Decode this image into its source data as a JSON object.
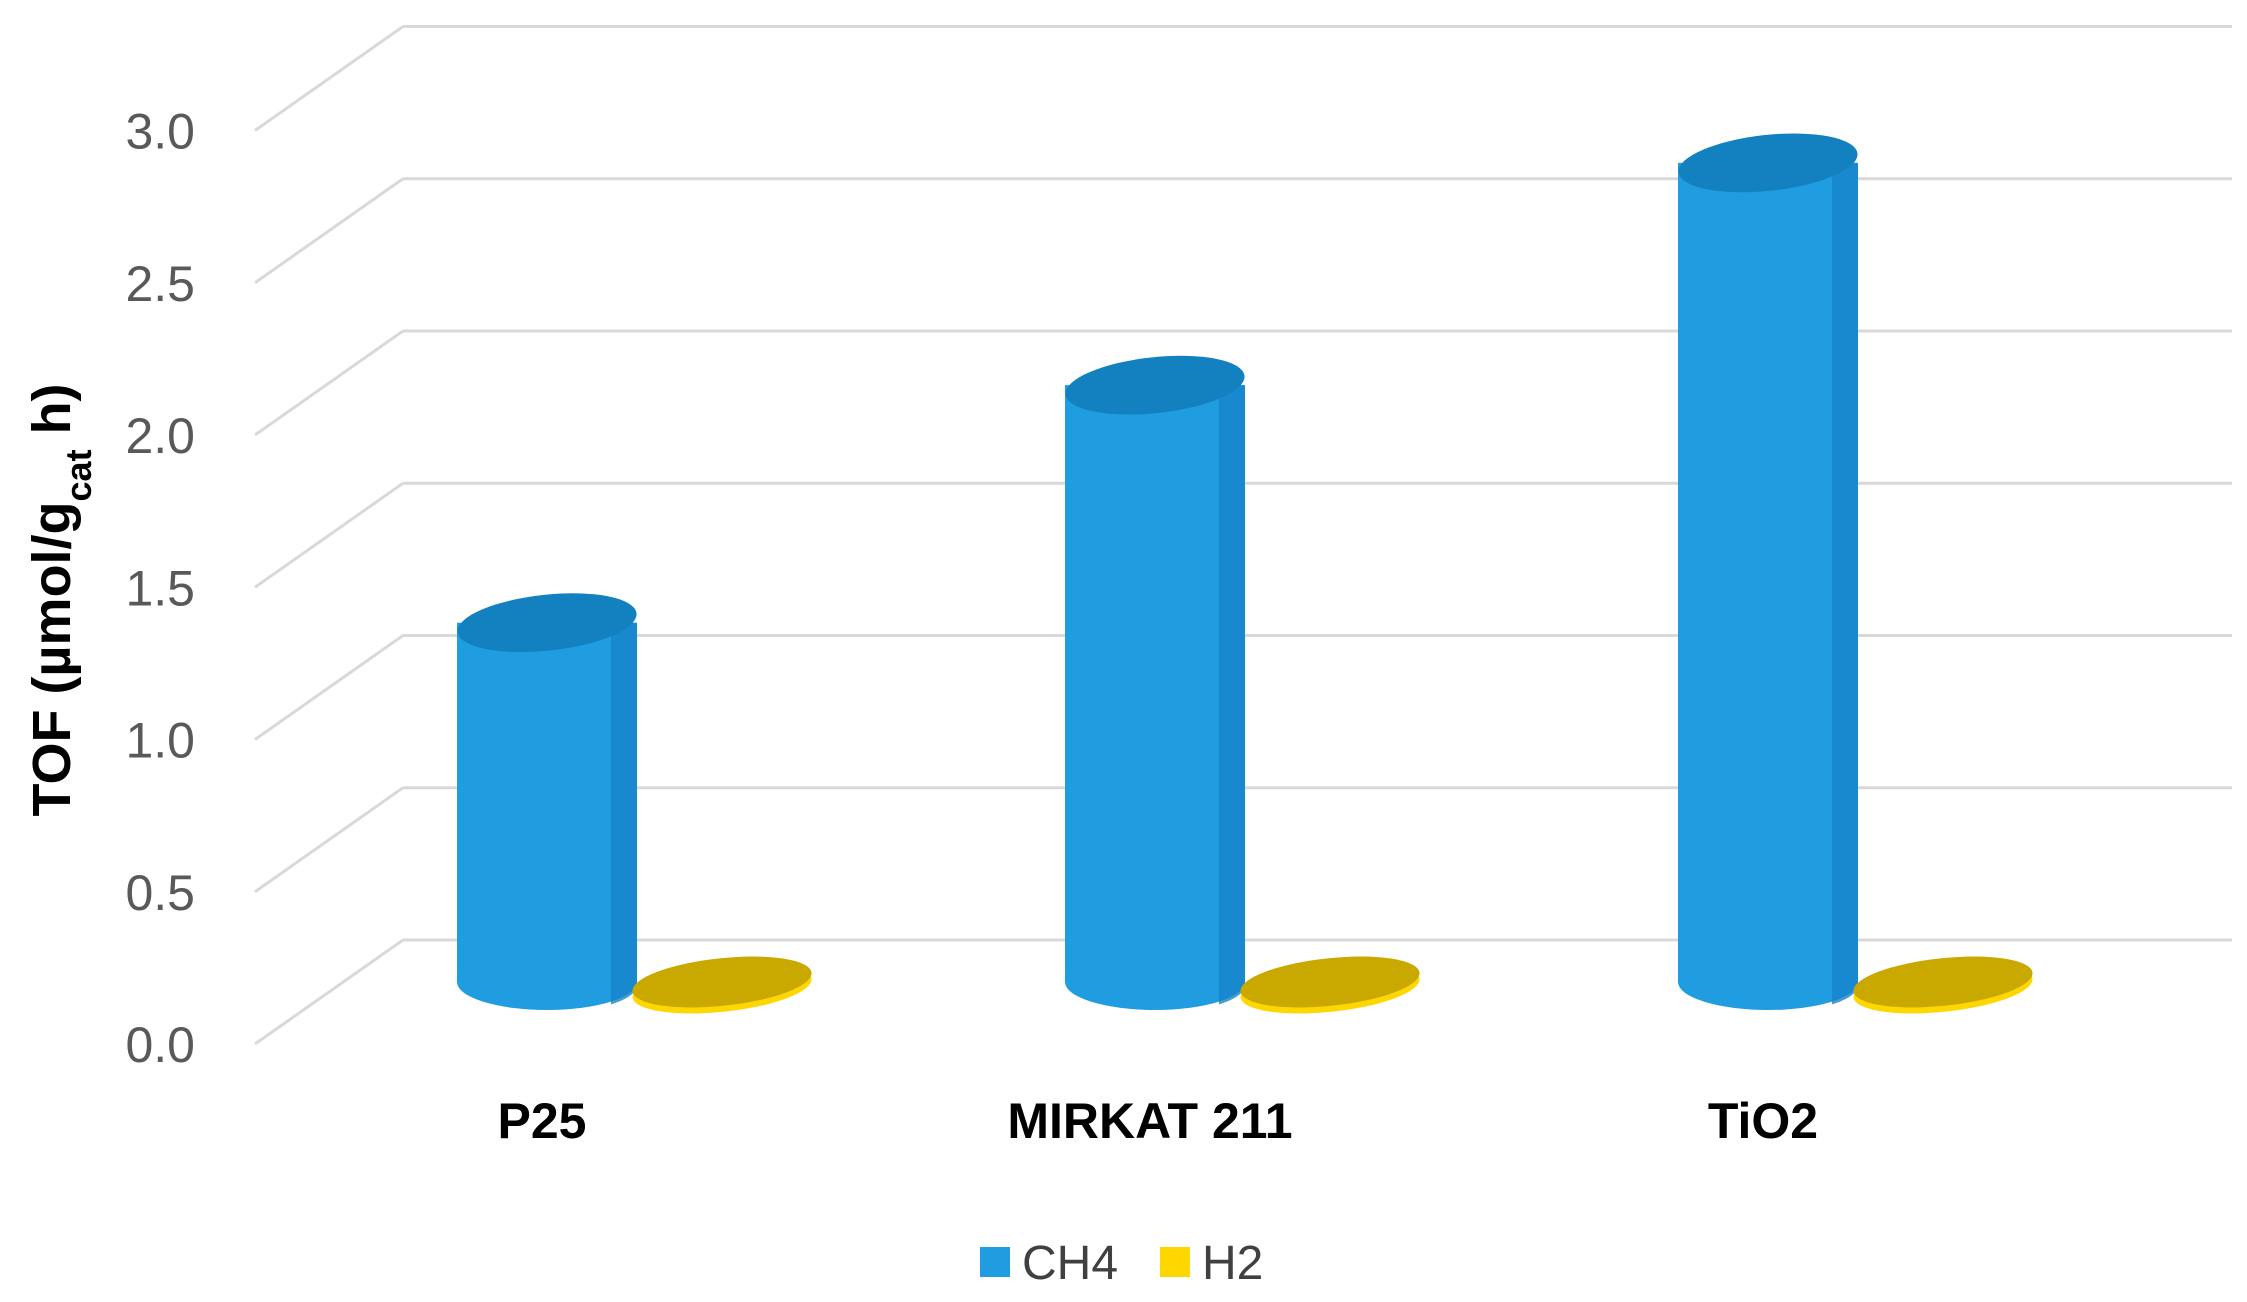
{
  "chart_data": {
    "type": "bar",
    "style": "3d-cylinder",
    "categories": [
      "P25",
      "MIRKAT 211",
      "TiO2"
    ],
    "series": [
      {
        "name": "CH4",
        "values": [
          1.18,
          1.96,
          2.69
        ],
        "color": "#1F9DE0",
        "top_color": "#1380C0"
      },
      {
        "name": "H2",
        "values": [
          0.0,
          0.0,
          0.0
        ],
        "color": "#E8C100",
        "top_color": "#C9A800"
      }
    ],
    "yticks": [
      "0.0",
      "0.5",
      "1.0",
      "1.5",
      "2.0",
      "2.5",
      "3.0"
    ],
    "ylim": [
      0,
      3.0
    ],
    "ylabel_parts": [
      "TOF (µmol/g",
      "cat",
      " h)"
    ],
    "grid": true,
    "grid_color": "#D9D9D9",
    "legend_position": "bottom"
  }
}
